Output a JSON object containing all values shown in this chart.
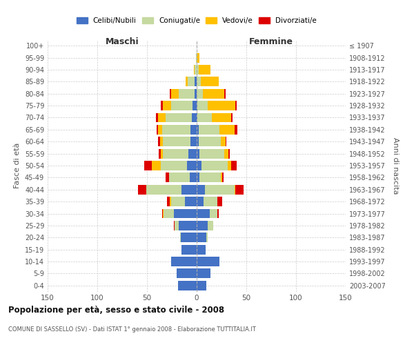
{
  "age_groups": [
    "0-4",
    "5-9",
    "10-14",
    "15-19",
    "20-24",
    "25-29",
    "30-34",
    "35-39",
    "40-44",
    "45-49",
    "50-54",
    "55-59",
    "60-64",
    "65-69",
    "70-74",
    "75-79",
    "80-84",
    "85-89",
    "90-94",
    "95-99",
    "100+"
  ],
  "birth_years": [
    "2003-2007",
    "1998-2002",
    "1993-1997",
    "1988-1992",
    "1983-1987",
    "1978-1982",
    "1973-1977",
    "1968-1972",
    "1963-1967",
    "1958-1962",
    "1953-1957",
    "1948-1952",
    "1943-1947",
    "1938-1942",
    "1933-1937",
    "1928-1932",
    "1923-1927",
    "1918-1922",
    "1913-1917",
    "1908-1912",
    "≤ 1907"
  ],
  "maschi": {
    "celibi": [
      19,
      20,
      26,
      15,
      16,
      18,
      23,
      12,
      15,
      7,
      10,
      8,
      6,
      6,
      5,
      4,
      2,
      2,
      0,
      0,
      0
    ],
    "coniugati": [
      0,
      0,
      0,
      0,
      1,
      4,
      10,
      14,
      36,
      21,
      26,
      26,
      28,
      29,
      26,
      22,
      16,
      7,
      2,
      1,
      0
    ],
    "vedovi": [
      0,
      0,
      0,
      0,
      0,
      0,
      1,
      1,
      0,
      0,
      9,
      2,
      3,
      4,
      8,
      8,
      8,
      2,
      1,
      0,
      0
    ],
    "divorziati": [
      0,
      0,
      0,
      0,
      0,
      1,
      1,
      3,
      8,
      3,
      8,
      2,
      2,
      1,
      2,
      2,
      1,
      0,
      0,
      0,
      0
    ]
  },
  "femmine": {
    "nubili": [
      10,
      14,
      23,
      9,
      10,
      11,
      13,
      7,
      8,
      3,
      5,
      3,
      2,
      2,
      1,
      1,
      0,
      0,
      0,
      0,
      0
    ],
    "coniugate": [
      0,
      0,
      0,
      0,
      1,
      6,
      8,
      14,
      30,
      21,
      26,
      25,
      22,
      21,
      14,
      10,
      6,
      4,
      2,
      0,
      0
    ],
    "vedove": [
      0,
      0,
      0,
      0,
      0,
      0,
      0,
      0,
      1,
      2,
      4,
      4,
      5,
      15,
      20,
      28,
      22,
      18,
      12,
      3,
      0
    ],
    "divorziate": [
      0,
      0,
      0,
      0,
      0,
      0,
      1,
      5,
      8,
      1,
      5,
      1,
      1,
      3,
      1,
      1,
      1,
      0,
      0,
      0,
      0
    ]
  },
  "colors": {
    "celibi": "#4472C4",
    "coniugati": "#c5d9a0",
    "vedovi": "#ffc000",
    "divorziati": "#dd0000"
  },
  "xlim": 150,
  "title": "Popolazione per età, sesso e stato civile - 2008",
  "subtitle": "COMUNE DI SASSELLO (SV) - Dati ISTAT 1° gennaio 2008 - Elaborazione TUTTITALIA.IT",
  "ylabel_left": "Fasce di età",
  "ylabel_right": "Anni di nascita",
  "label_maschi": "Maschi",
  "label_femmine": "Femmine",
  "legend_labels": [
    "Celibi/Nubili",
    "Coniugati/e",
    "Vedovi/e",
    "Divorziati/e"
  ],
  "grid_color": "#cccccc"
}
